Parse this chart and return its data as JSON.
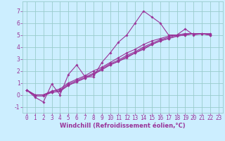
{
  "xlabel": "Windchill (Refroidissement éolien,°C)",
  "bg_color": "#cceeff",
  "grid_color": "#99cccc",
  "line_color": "#993399",
  "xlim": [
    -0.5,
    23.5
  ],
  "ylim": [
    -1.5,
    7.8
  ],
  "xticks": [
    0,
    1,
    2,
    3,
    4,
    5,
    6,
    7,
    8,
    9,
    10,
    11,
    12,
    13,
    14,
    15,
    16,
    17,
    18,
    19,
    20,
    21,
    22,
    23
  ],
  "yticks": [
    -1,
    0,
    1,
    2,
    3,
    4,
    5,
    6,
    7
  ],
  "series": [
    {
      "x": [
        0,
        1,
        2,
        3,
        4,
        5,
        6,
        7,
        8,
        9,
        10,
        11,
        12,
        13,
        14,
        15,
        16,
        17,
        18,
        19,
        20,
        21,
        22
      ],
      "y": [
        0.4,
        -0.2,
        -0.6,
        0.9,
        0.0,
        1.7,
        2.5,
        1.5,
        1.5,
        2.7,
        3.5,
        4.4,
        5.0,
        6.0,
        7.0,
        6.5,
        6.0,
        5.0,
        5.0,
        5.5,
        5.0,
        5.1,
        5.0
      ]
    },
    {
      "x": [
        0,
        1,
        2,
        3,
        4,
        5,
        6,
        7,
        8,
        9,
        10,
        11,
        12,
        13,
        14,
        15,
        16,
        17,
        18,
        19,
        20,
        21,
        22
      ],
      "y": [
        0.4,
        -0.1,
        -0.1,
        0.2,
        0.3,
        0.8,
        1.1,
        1.4,
        1.7,
        2.1,
        2.5,
        2.8,
        3.1,
        3.5,
        3.8,
        4.2,
        4.5,
        4.7,
        4.9,
        5.0,
        5.1,
        5.1,
        5.0
      ]
    },
    {
      "x": [
        0,
        1,
        2,
        3,
        4,
        5,
        6,
        7,
        8,
        9,
        10,
        11,
        12,
        13,
        14,
        15,
        16,
        17,
        18,
        19,
        20,
        21,
        22
      ],
      "y": [
        0.4,
        0.0,
        0.0,
        0.2,
        0.3,
        0.8,
        1.1,
        1.4,
        1.7,
        2.1,
        2.5,
        2.8,
        3.2,
        3.5,
        3.9,
        4.2,
        4.5,
        4.7,
        4.9,
        5.0,
        5.1,
        5.1,
        5.1
      ]
    },
    {
      "x": [
        0,
        1,
        2,
        3,
        4,
        5,
        6,
        7,
        8,
        9,
        10,
        11,
        12,
        13,
        14,
        15,
        16,
        17,
        18,
        19,
        20,
        21,
        22
      ],
      "y": [
        0.4,
        0.0,
        0.0,
        0.3,
        0.4,
        0.9,
        1.2,
        1.5,
        1.8,
        2.2,
        2.6,
        2.9,
        3.3,
        3.6,
        4.0,
        4.3,
        4.6,
        4.8,
        5.0,
        5.1,
        5.1,
        5.1,
        5.1
      ]
    },
    {
      "x": [
        0,
        1,
        2,
        3,
        4,
        5,
        6,
        7,
        8,
        9,
        10,
        11,
        12,
        13,
        14,
        15,
        16,
        17,
        18,
        19,
        20,
        21,
        22
      ],
      "y": [
        0.4,
        0.0,
        0.0,
        0.3,
        0.5,
        1.0,
        1.3,
        1.6,
        2.0,
        2.3,
        2.7,
        3.1,
        3.5,
        3.8,
        4.2,
        4.5,
        4.7,
        4.9,
        5.0,
        5.1,
        5.1,
        5.1,
        5.0
      ]
    }
  ],
  "marker": "D",
  "markersize": 1.8,
  "linewidth": 0.8,
  "xlabel_fontsize": 6,
  "tick_fontsize": 5.5
}
